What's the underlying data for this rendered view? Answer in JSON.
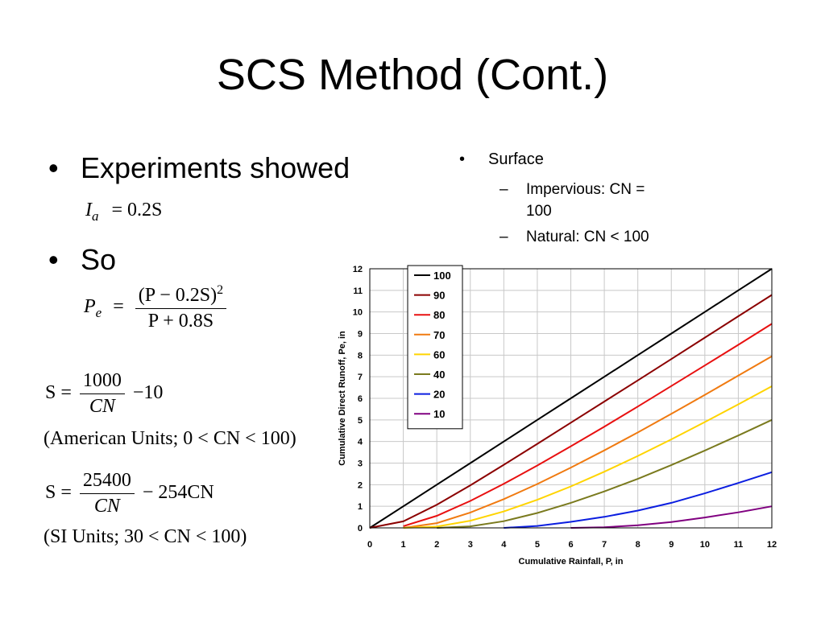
{
  "slide": {
    "title": "SCS Method (Cont.)",
    "left_bullets": [
      "Experiments showed",
      "So"
    ],
    "bullet_glyph": "•",
    "dash_glyph": "–",
    "eq1": {
      "lhs_var": "I",
      "lhs_sub": "a",
      "rhs": "= 0.2S"
    },
    "eq2": {
      "lhs_var": "P",
      "lhs_sub": "e",
      "equals": "=",
      "num": "(P − 0.2S)",
      "num_exp": "2",
      "den": "P + 0.8S"
    },
    "eq3": {
      "lhs": "S =",
      "num": "1000",
      "den": "CN",
      "tail": "−10",
      "note": "(American Units; 0 < CN < 100)"
    },
    "eq4": {
      "lhs": "S =",
      "num": "25400",
      "den": "CN",
      "tail": "− 254CN",
      "note": "(SI Units; 30 < CN < 100)"
    },
    "right_bullet": "Surface",
    "right_sub1_line1": "Impervious:  CN =",
    "right_sub1_line2": "100",
    "right_sub2": "Natural:  CN < 100"
  },
  "chart_data": {
    "type": "line",
    "xlabel": "Cumulative Rainfall, P, in",
    "ylabel": "Cumulative Direct Runoff, Pe, in",
    "xlim": [
      0,
      12
    ],
    "ylim": [
      0,
      12
    ],
    "xticks": [
      0,
      1,
      2,
      3,
      4,
      5,
      6,
      7,
      8,
      9,
      10,
      11,
      12
    ],
    "yticks": [
      0,
      1,
      2,
      3,
      4,
      5,
      6,
      7,
      8,
      9,
      10,
      11,
      12
    ],
    "grid": true,
    "legend_position": "top-left",
    "series": [
      {
        "name": "100",
        "color": "#000000",
        "x": [
          0,
          1,
          2,
          3,
          4,
          5,
          6,
          7,
          8,
          9,
          10,
          11,
          12
        ],
        "values": [
          0,
          1,
          2,
          3,
          4,
          5,
          6,
          7,
          8,
          9,
          10,
          11,
          12
        ]
      },
      {
        "name": "90",
        "color": "#8b0000",
        "x": [
          0,
          1,
          2,
          3,
          4,
          5,
          6,
          7,
          8,
          9,
          10,
          11,
          12
        ],
        "values": [
          0,
          0.3,
          1.07,
          1.97,
          2.92,
          3.89,
          4.87,
          5.85,
          6.83,
          7.82,
          8.81,
          9.8,
          10.79
        ]
      },
      {
        "name": "80",
        "color": "#e81010",
        "x": [
          1,
          2,
          3,
          4,
          5,
          6,
          7,
          8,
          9,
          10,
          11,
          12
        ],
        "values": [
          0.08,
          0.56,
          1.25,
          2.04,
          2.89,
          3.78,
          4.69,
          5.62,
          6.57,
          7.52,
          8.48,
          9.45
        ]
      },
      {
        "name": "70",
        "color": "#f07a10",
        "x": [
          1,
          2,
          3,
          4,
          5,
          6,
          7,
          8,
          9,
          10,
          11,
          12
        ],
        "values": [
          0,
          0.22,
          0.71,
          1.33,
          2.03,
          2.79,
          3.59,
          4.42,
          5.28,
          6.16,
          7.05,
          7.95
        ]
      },
      {
        "name": "60",
        "color": "#ffd400",
        "x": [
          1,
          2,
          3,
          4,
          5,
          6,
          7,
          8,
          9,
          10,
          11,
          12
        ],
        "values": [
          0,
          0.06,
          0.33,
          0.76,
          1.3,
          1.92,
          2.6,
          3.33,
          4.1,
          4.9,
          5.72,
          6.56
        ]
      },
      {
        "name": "40",
        "color": "#7a7a1e",
        "x": [
          2,
          3,
          4,
          5,
          6,
          7,
          8,
          9,
          10,
          11,
          12
        ],
        "values": [
          0,
          0.07,
          0.31,
          0.69,
          1.16,
          1.69,
          2.27,
          2.91,
          3.58,
          4.28,
          5.0
        ]
      },
      {
        "name": "20",
        "color": "#0b1ee0",
        "x": [
          4,
          5,
          6,
          7,
          8,
          9,
          10,
          11,
          12
        ],
        "values": [
          0,
          0.09,
          0.28,
          0.51,
          0.8,
          1.16,
          1.6,
          2.08,
          2.58
        ]
      },
      {
        "name": "10",
        "color": "#800080",
        "x": [
          6,
          7,
          8,
          9,
          10,
          11,
          12
        ],
        "values": [
          0,
          0.03,
          0.12,
          0.27,
          0.48,
          0.72,
          1.0
        ]
      }
    ]
  }
}
